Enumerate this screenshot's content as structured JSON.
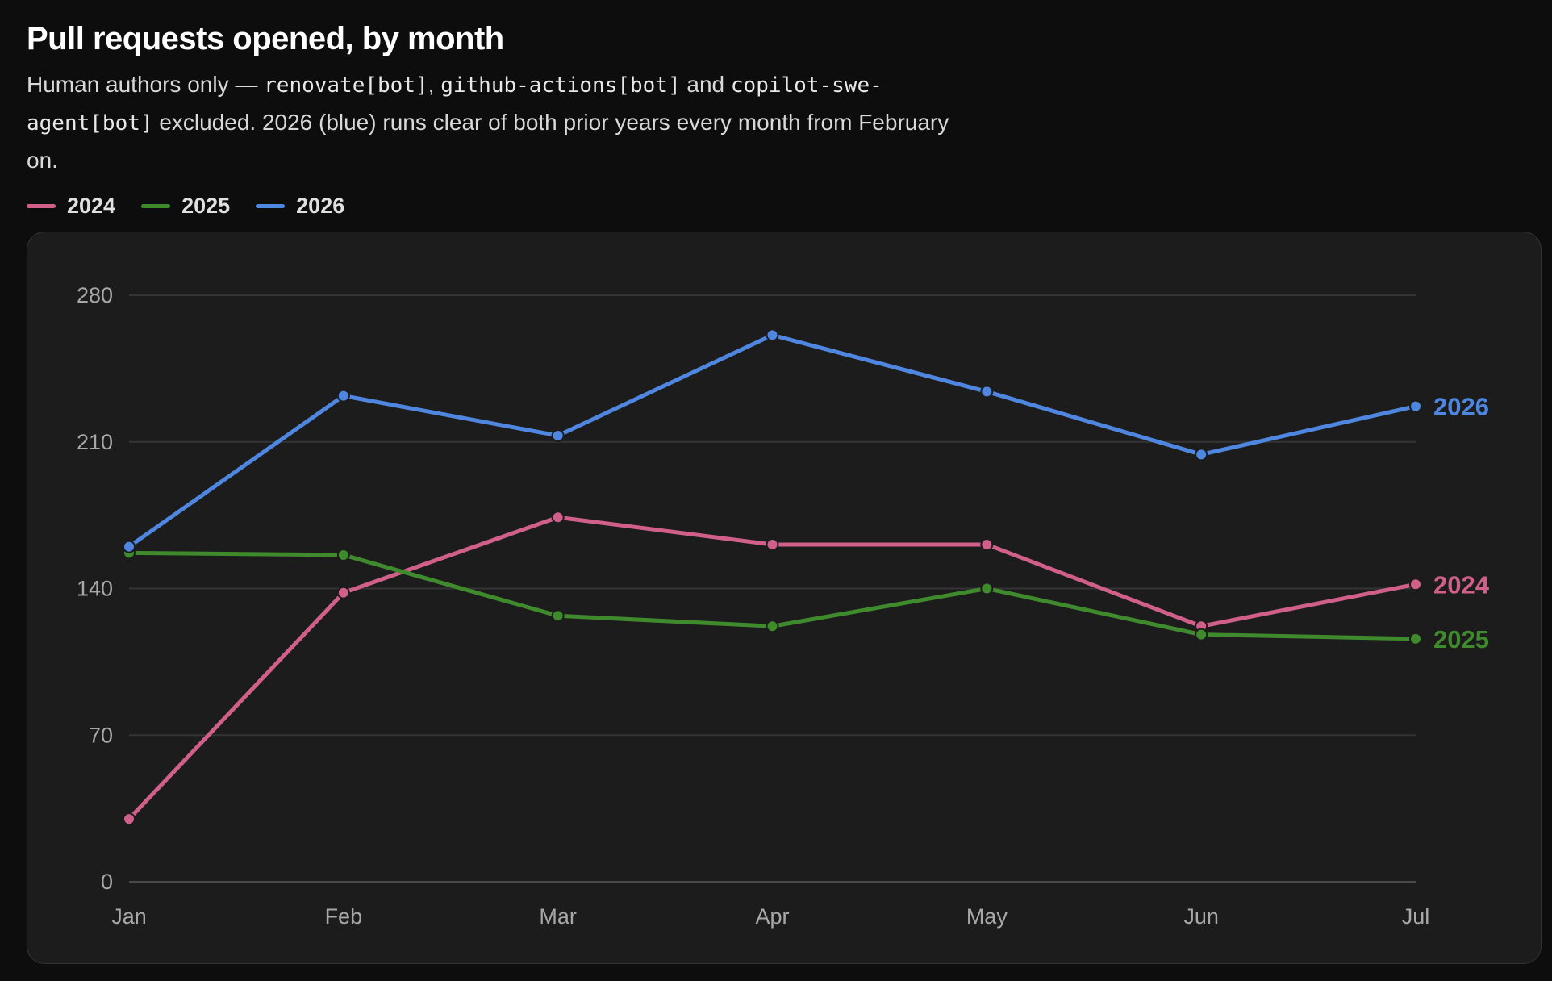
{
  "chart_data": {
    "type": "line",
    "title": "Pull requests opened, by month",
    "subtitle_parts": [
      {
        "text": "Human authors only — ",
        "code": false
      },
      {
        "text": "renovate[bot]",
        "code": true
      },
      {
        "text": ", ",
        "code": false
      },
      {
        "text": "github-actions[bot]",
        "code": true
      },
      {
        "text": " and ",
        "code": false
      },
      {
        "text": "copilot-swe-agent[bot]",
        "code": true
      },
      {
        "text": " excluded. 2026 (blue) runs clear of both prior years every month from February on.",
        "code": false
      }
    ],
    "categories": [
      "Jan",
      "Feb",
      "Mar",
      "Apr",
      "May",
      "Jun",
      "Jul"
    ],
    "ylim": [
      0,
      280
    ],
    "yticks": [
      0,
      70,
      140,
      210,
      280
    ],
    "grid": true,
    "legend_position": "top-left",
    "series": [
      {
        "name": "2024",
        "color": "#d0608a",
        "values": [
          30,
          138,
          174,
          161,
          161,
          122,
          142
        ]
      },
      {
        "name": "2025",
        "color": "#3f8a2c",
        "values": [
          157,
          156,
          127,
          122,
          140,
          118,
          116
        ]
      },
      {
        "name": "2026",
        "color": "#4f87e0",
        "values": [
          160,
          232,
          213,
          261,
          234,
          204,
          227
        ]
      }
    ]
  }
}
